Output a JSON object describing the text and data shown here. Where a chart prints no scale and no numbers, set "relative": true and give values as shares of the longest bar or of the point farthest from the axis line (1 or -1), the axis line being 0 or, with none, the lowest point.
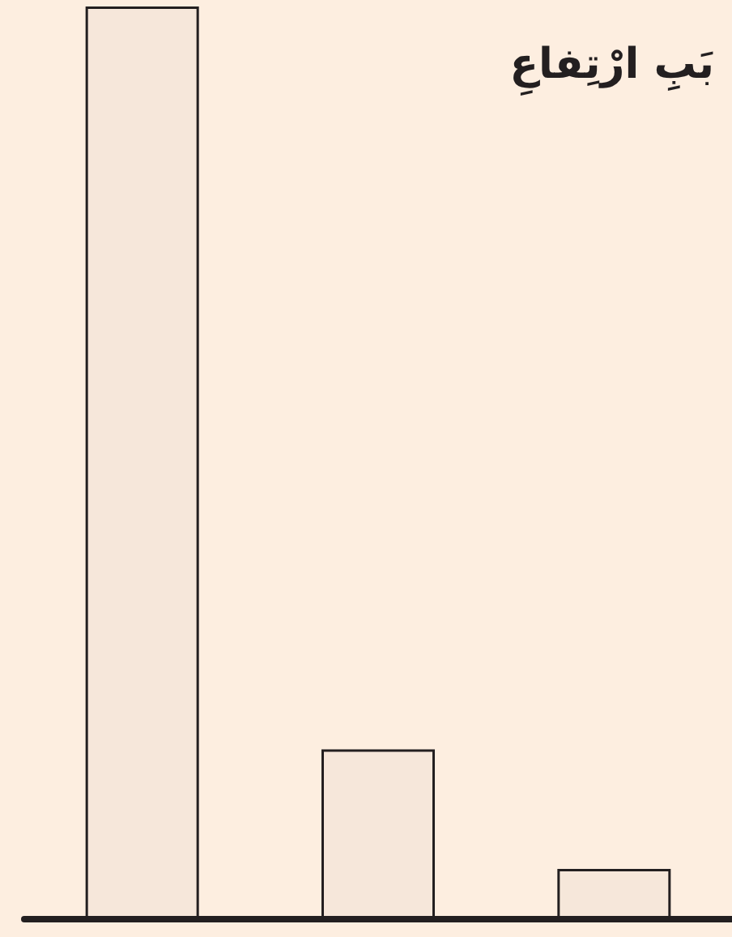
{
  "chart_data": {
    "type": "bar",
    "title": "بَبِ ارْتِفاعِ",
    "categories": [
      null,
      null,
      null
    ],
    "values": [
      1,
      0.186,
      0.055
    ],
    "color": "#231f20",
    "relative": true
  }
}
